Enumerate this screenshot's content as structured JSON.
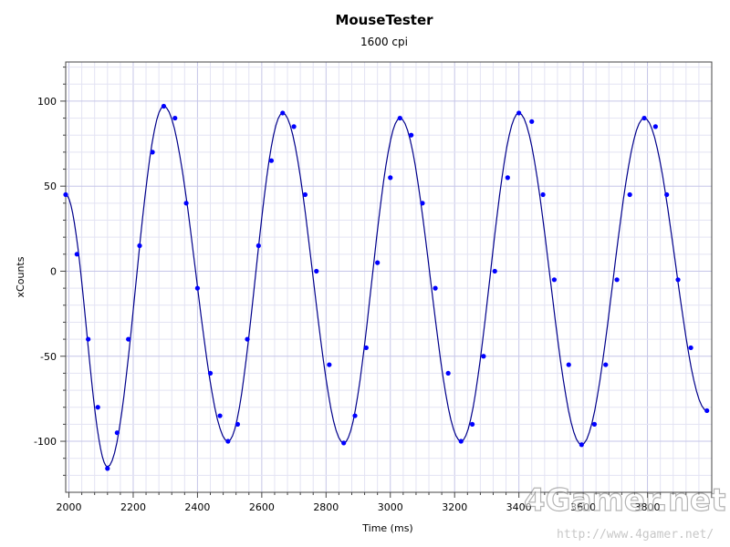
{
  "chart_data": {
    "type": "scatter",
    "title": "MouseTester",
    "subtitle": "1600 cpi",
    "xlabel": "Time (ms)",
    "ylabel": "xCounts",
    "xlim": [
      1990,
      4000
    ],
    "ylim": [
      -130,
      123
    ],
    "x_ticks": [
      "2000",
      "2200",
      "2400",
      "2600",
      "2800",
      "3000",
      "3200",
      "3400",
      "3600",
      "3800"
    ],
    "y_ticks": [
      "-100",
      "-50",
      "0",
      "50",
      "100"
    ],
    "grid": true,
    "legend": "none",
    "marker_color": "#0000ff",
    "line_color": "#00008b",
    "series": [
      {
        "kind": "fitted-curve",
        "x": [
          1990,
          2120,
          2295,
          2495,
          2665,
          2855,
          3030,
          3220,
          3400,
          3595,
          3790,
          3985
        ],
        "values": [
          45,
          -115,
          97,
          -100,
          93,
          -101,
          90,
          -100,
          93,
          -102,
          90,
          -82
        ]
      },
      {
        "kind": "samples",
        "x": [
          1990,
          2025,
          2060,
          2090,
          2120,
          2150,
          2185,
          2220,
          2260,
          2295,
          2330,
          2365,
          2400,
          2440,
          2470,
          2495,
          2525,
          2555,
          2590,
          2630,
          2665,
          2700,
          2735,
          2770,
          2810,
          2855,
          2890,
          2925,
          2960,
          3000,
          3030,
          3065,
          3100,
          3140,
          3180,
          3220,
          3255,
          3290,
          3325,
          3365,
          3400,
          3440,
          3475,
          3510,
          3555,
          3595,
          3635,
          3670,
          3705,
          3745,
          3790,
          3825,
          3860,
          3895,
          3935,
          3985
        ],
        "values": [
          45,
          10,
          -40,
          -80,
          -116,
          -95,
          -40,
          15,
          70,
          97,
          90,
          40,
          -10,
          -60,
          -85,
          -100,
          -90,
          -40,
          15,
          65,
          93,
          85,
          45,
          0,
          -55,
          -101,
          -85,
          -45,
          5,
          55,
          90,
          80,
          40,
          -10,
          -60,
          -100,
          -90,
          -50,
          0,
          55,
          93,
          88,
          45,
          -5,
          -55,
          -102,
          -90,
          -55,
          -5,
          45,
          90,
          85,
          45,
          -5,
          -45,
          -82
        ]
      }
    ]
  },
  "watermark": {
    "brand": "4Gamer.net",
    "url": "http://www.4gamer.net/"
  }
}
